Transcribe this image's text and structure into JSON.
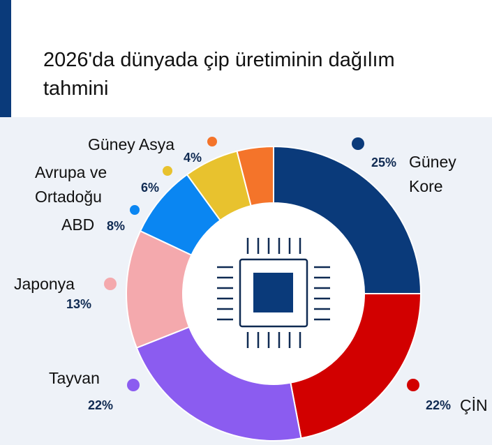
{
  "page": {
    "title": "2026'da dünyada çip üretiminin dağılım tahmini",
    "icon": "chip-icon"
  },
  "chart_data": {
    "type": "pie",
    "title": "2026'da dünyada çip üretiminin dağılım tahmini",
    "labels": [
      "Güney Kore",
      "ÇİN",
      "Tayvan",
      "Japonya",
      "ABD",
      "Avrupa ve Ortadoğu",
      "Güney Asya"
    ],
    "values": [
      25,
      22,
      22,
      13,
      8,
      6,
      4
    ],
    "value_labels": [
      "25%",
      "22%",
      "22%",
      "13%",
      "8%",
      "6%",
      "4%"
    ],
    "colors": [
      "#0a3a7a",
      "#d20000",
      "#8b5cf0",
      "#f4a9ad",
      "#0a86f2",
      "#e8c22e",
      "#f4742a"
    ],
    "legend": "around",
    "grid": false
  },
  "labels": {
    "south_korea_line1": "Güney",
    "south_korea_line2": "Kore",
    "china": "ÇİN",
    "taiwan": "Tayvan",
    "japan": "Japonya",
    "usa": "ABD",
    "europe_line1": "Avrupa ve",
    "europe_line2": "Ortadoğu",
    "south_asia": "Güney Asya"
  }
}
